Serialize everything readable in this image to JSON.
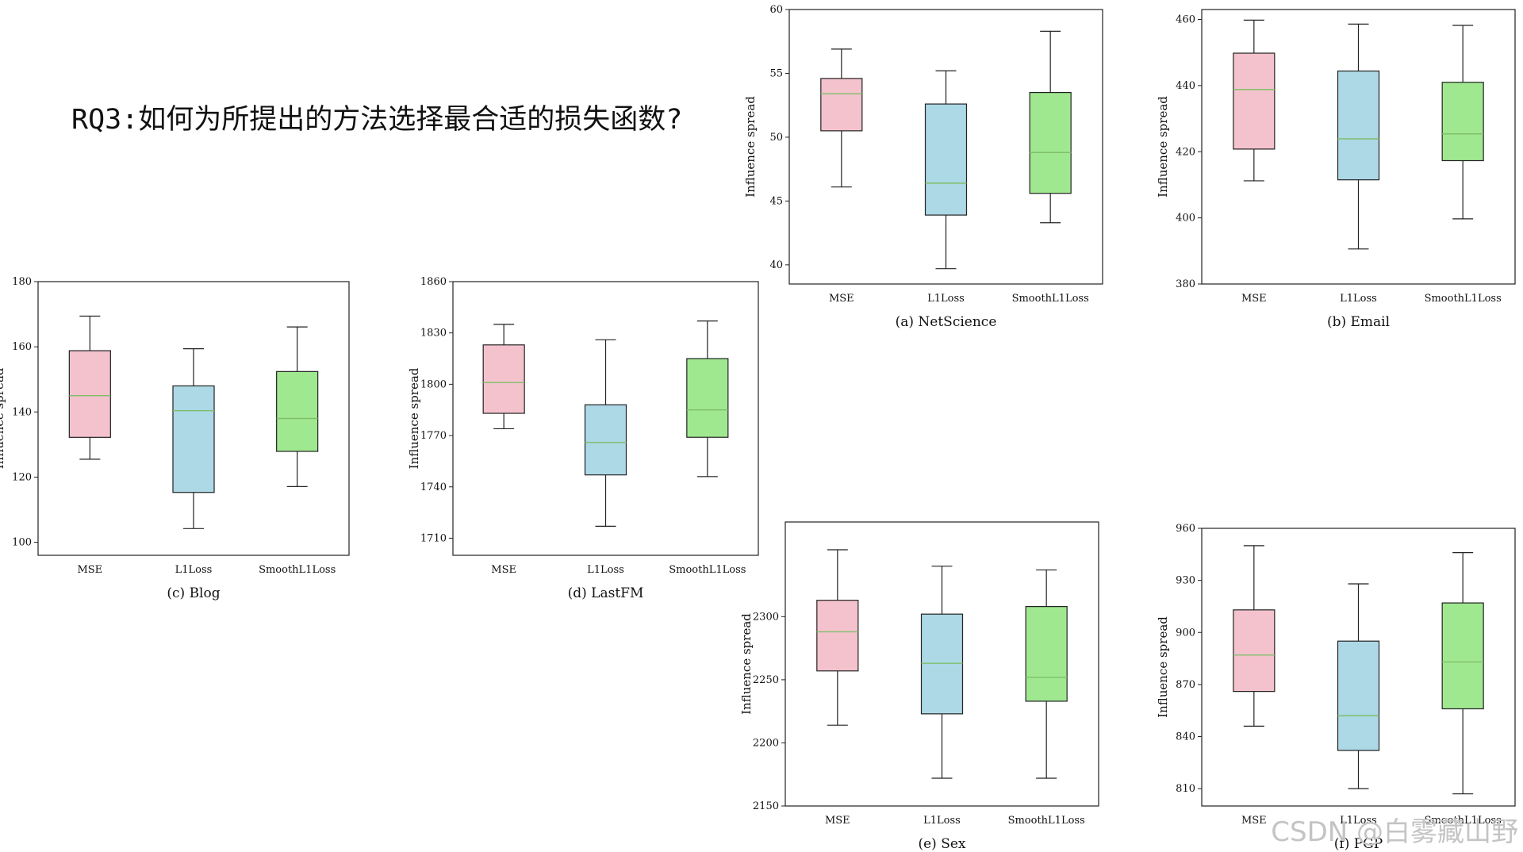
{
  "heading": "RQ3:如何为所提出的方法选择最合适的损失函数?",
  "watermark": "CSDN @白雾藏山野",
  "chart_data": [
    {
      "id": "a",
      "type": "box",
      "caption": "(a) NetScience",
      "ylabel": "Influence spread",
      "ylim": [
        38.5,
        60
      ],
      "yticks": [
        40,
        45,
        50,
        55,
        60
      ],
      "categories": [
        "MSE",
        "L1Loss",
        "SmoothL1Loss"
      ],
      "colors": [
        "#f4c2cd",
        "#add8e6",
        "#a0e890"
      ],
      "median_color": "#7fbf6a",
      "boxes": [
        {
          "min": 46.1,
          "q1": 50.5,
          "median": 53.4,
          "q3": 54.6,
          "max": 56.9
        },
        {
          "min": 39.7,
          "q1": 43.9,
          "median": 46.4,
          "q3": 52.6,
          "max": 55.2
        },
        {
          "min": 43.3,
          "q1": 45.6,
          "median": 48.8,
          "q3": 53.5,
          "max": 58.3
        }
      ]
    },
    {
      "id": "b",
      "type": "box",
      "caption": "(b) Email",
      "ylabel": "Influence spread",
      "ylim": [
        380,
        463
      ],
      "yticks": [
        380,
        400,
        420,
        440,
        460
      ],
      "categories": [
        "MSE",
        "L1Loss",
        "SmoothL1Loss"
      ],
      "colors": [
        "#f4c2cd",
        "#add8e6",
        "#a0e890"
      ],
      "median_color": "#7fbf6a",
      "boxes": [
        {
          "min": 411.2,
          "q1": 420.8,
          "median": 438.8,
          "q3": 449.8,
          "max": 459.8
        },
        {
          "min": 390.6,
          "q1": 411.5,
          "median": 423.9,
          "q3": 444.4,
          "max": 458.6
        },
        {
          "min": 399.7,
          "q1": 417.3,
          "median": 425.4,
          "q3": 441.0,
          "max": 458.2
        }
      ]
    },
    {
      "id": "c",
      "type": "box",
      "caption": "(c) Blog",
      "ylabel": "Influence spread",
      "ylim": [
        96,
        180
      ],
      "yticks": [
        100,
        120,
        140,
        160,
        180
      ],
      "categories": [
        "MSE",
        "L1Loss",
        "SmoothL1Loss"
      ],
      "colors": [
        "#f4c2cd",
        "#add8e6",
        "#a0e890"
      ],
      "median_color": "#7fbf6a",
      "boxes": [
        {
          "min": 125.5,
          "q1": 132.2,
          "median": 145.0,
          "q3": 158.8,
          "max": 169.4
        },
        {
          "min": 104.2,
          "q1": 115.3,
          "median": 140.4,
          "q3": 148.0,
          "max": 159.4
        },
        {
          "min": 117.1,
          "q1": 127.9,
          "median": 138.0,
          "q3": 152.4,
          "max": 166.1
        }
      ]
    },
    {
      "id": "d",
      "type": "box",
      "caption": "(d) LastFM",
      "ylabel": "Influence spread",
      "ylim": [
        1700,
        1860
      ],
      "yticks": [
        1710,
        1740,
        1770,
        1800,
        1830,
        1860
      ],
      "categories": [
        "MSE",
        "L1Loss",
        "SmoothL1Loss"
      ],
      "colors": [
        "#f4c2cd",
        "#add8e6",
        "#a0e890"
      ],
      "median_color": "#7fbf6a",
      "boxes": [
        {
          "min": 1774,
          "q1": 1783,
          "median": 1801,
          "q3": 1823,
          "max": 1835
        },
        {
          "min": 1717,
          "q1": 1747,
          "median": 1766,
          "q3": 1788,
          "max": 1826
        },
        {
          "min": 1746,
          "q1": 1769,
          "median": 1785,
          "q3": 1815,
          "max": 1837
        }
      ]
    },
    {
      "id": "e",
      "type": "box",
      "caption": "(e) Sex",
      "ylabel": "Influence spread",
      "ylim": [
        2150,
        2375
      ],
      "yticks": [
        2150,
        2200,
        2250,
        2300
      ],
      "categories": [
        "MSE",
        "L1Loss",
        "SmoothL1Loss"
      ],
      "colors": [
        "#f4c2cd",
        "#add8e6",
        "#a0e890"
      ],
      "median_color": "#7fbf6a",
      "boxes": [
        {
          "min": 2214,
          "q1": 2257,
          "median": 2288,
          "q3": 2313,
          "max": 2353
        },
        {
          "min": 2172,
          "q1": 2223,
          "median": 2263,
          "q3": 2302,
          "max": 2340
        },
        {
          "min": 2172,
          "q1": 2233,
          "median": 2252,
          "q3": 2308,
          "max": 2337
        }
      ]
    },
    {
      "id": "f",
      "type": "box",
      "caption": "(f) PGP",
      "ylabel": "Influence spread",
      "ylim": [
        800,
        960
      ],
      "yticks": [
        810,
        840,
        870,
        900,
        930,
        960
      ],
      "categories": [
        "MSE",
        "L1Loss",
        "SmoothL1Loss"
      ],
      "colors": [
        "#f4c2cd",
        "#add8e6",
        "#a0e890"
      ],
      "median_color": "#7fbf6a",
      "boxes": [
        {
          "min": 846,
          "q1": 866,
          "median": 887,
          "q3": 913,
          "max": 950
        },
        {
          "min": 810,
          "q1": 832,
          "median": 852,
          "q3": 895,
          "max": 928
        },
        {
          "min": 807,
          "q1": 856,
          "median": 883,
          "q3": 917,
          "max": 946
        }
      ]
    }
  ]
}
